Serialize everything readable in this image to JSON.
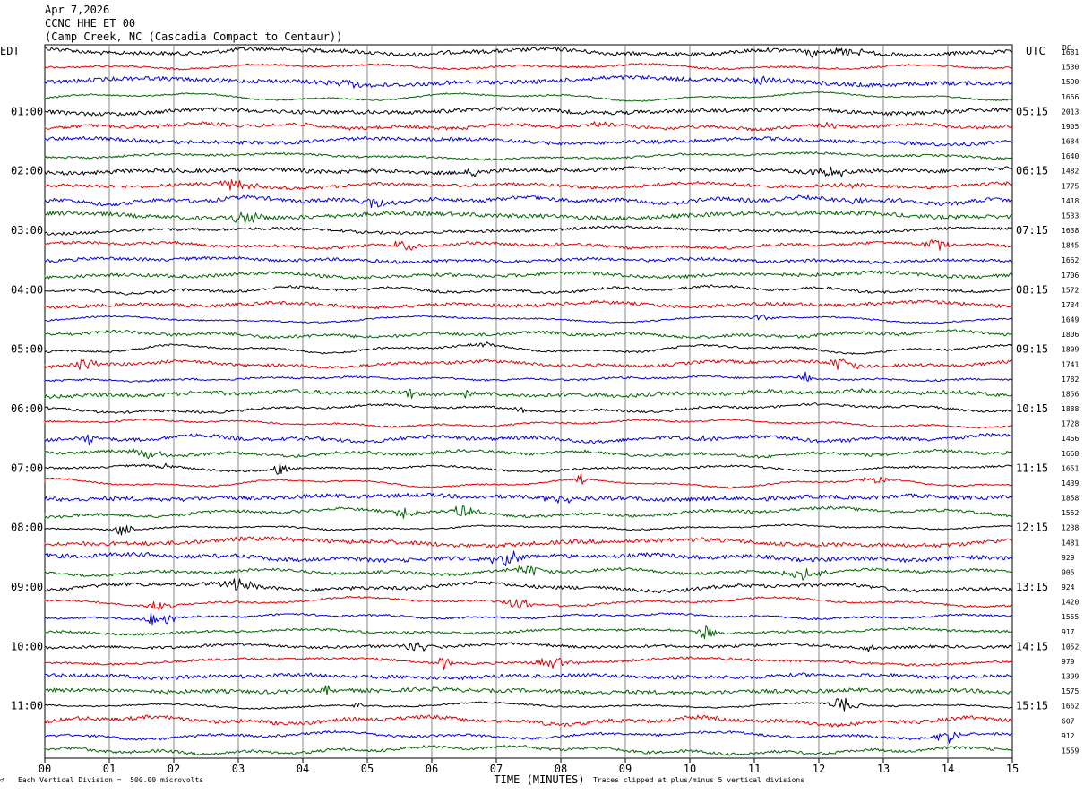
{
  "header": {
    "date": "Apr 7,2026",
    "station": "CCNC HHE ET 00",
    "location": "(Camp Creek, NC (Cascadia Compact to Centaur))"
  },
  "left_timezone": "EDT",
  "right_timezone": "UTC",
  "dc_label": "DC",
  "footer": {
    "scale_note": "Each Vertical Division =  500.00 microvolts",
    "clip_note": "Traces clipped at plus/minus 5 vertical divisions",
    "corner_mark": "♂"
  },
  "chart_data": {
    "type": "line",
    "xlabel": "TIME (MINUTES)",
    "xlim": [
      0,
      15
    ],
    "x_ticks": [
      "00",
      "01",
      "02",
      "03",
      "04",
      "05",
      "06",
      "07",
      "08",
      "09",
      "10",
      "11",
      "12",
      "13",
      "14",
      "15"
    ],
    "trace_colors": [
      "#000000",
      "#e00000",
      "#0000e0",
      "#006400"
    ],
    "left_hour_labels": [
      "01:00",
      "02:00",
      "03:00",
      "04:00",
      "05:00",
      "06:00",
      "07:00",
      "08:00",
      "09:00",
      "10:00",
      "11:00"
    ],
    "right_hour_labels": [
      "05:15",
      "06:15",
      "07:15",
      "08:15",
      "09:15",
      "10:15",
      "11:15",
      "12:15",
      "13:15",
      "14:15",
      "15:15"
    ],
    "dc_offsets": [
      "1681",
      "1530",
      "1590",
      "1656",
      "2013",
      "1905",
      "1684",
      "1640",
      "1482",
      "1775",
      "1418",
      "1533",
      "1638",
      "1845",
      "1662",
      "1706",
      "1572",
      "1734",
      "1649",
      "1806",
      "1809",
      "1741",
      "1782",
      "1856",
      "1888",
      "1728",
      "1466",
      "1658",
      "1651",
      "1439",
      "1858",
      "1552",
      "1238",
      "1481",
      "929",
      "905",
      "924",
      "1420",
      "1555",
      "917",
      "1052",
      "979",
      "1399",
      "1575",
      "1662",
      "607",
      "912",
      "1559"
    ]
  }
}
